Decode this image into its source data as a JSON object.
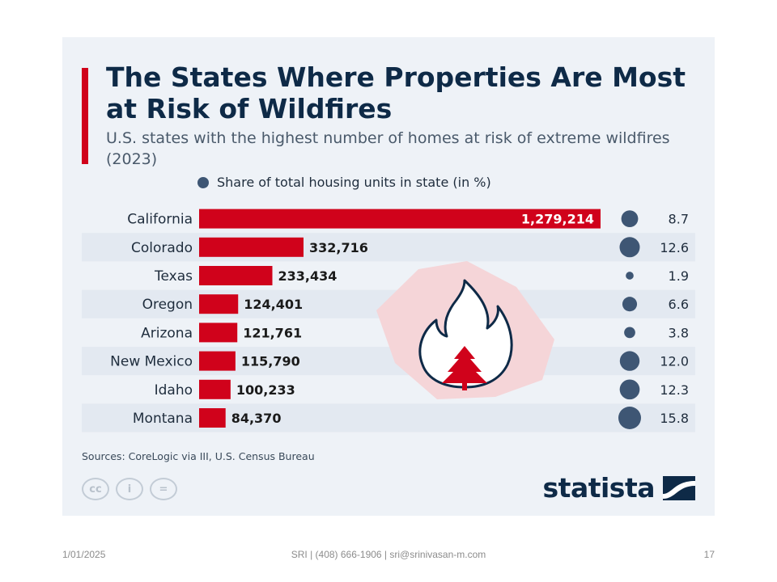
{
  "slide": {
    "date": "1/01/2025",
    "footer_text": "SRI | (408) 666-1906 | sri@srinivasan-m.com",
    "page_number": "17"
  },
  "infographic": {
    "title": "The States Where Properties Are Most at Risk of Wildfires",
    "subtitle": "U.S. states with the highest number of homes at risk of extreme wildfires (2023)",
    "legend_label": "Share of total housing units in state (in %)",
    "sources": "Sources: CoreLogic via III, U.S. Census Bureau",
    "brand": "statista",
    "cc_icons": [
      "cc",
      "i",
      "="
    ],
    "colors": {
      "bar": "#d0021b",
      "bubble": "#3e5674",
      "title": "#0e2a47",
      "stripe": "#e3e9f1",
      "illustration_bg": "#f5d5d8"
    },
    "illustration_icon": "fire-tree-icon"
  },
  "chart_data": {
    "type": "bar",
    "orientation": "horizontal",
    "categories": [
      "California",
      "Colorado",
      "Texas",
      "Oregon",
      "Arizona",
      "New Mexico",
      "Idaho",
      "Montana"
    ],
    "series": [
      {
        "values": [
          1279214,
          332716,
          233434,
          124401,
          121761,
          115790,
          100233,
          84370
        ],
        "labels": [
          "1,279,214",
          "332,716",
          "233,434",
          "124,401",
          "121,761",
          "115,790",
          "100,233",
          "84,370"
        ]
      },
      {
        "name": "Share of total housing units in state (in %)",
        "values": [
          8.7,
          12.6,
          1.9,
          6.6,
          3.8,
          12.0,
          12.3,
          15.8
        ],
        "labels": [
          "8.7",
          "12.6",
          "1.9",
          "6.6",
          "3.8",
          "12.0",
          "12.3",
          "15.8"
        ]
      }
    ],
    "legend": "top"
  }
}
